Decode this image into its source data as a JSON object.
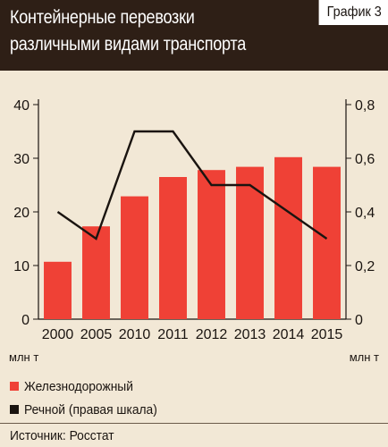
{
  "header": {
    "title": "Контейнерные перевозки\nразличными видами транспорта",
    "badge": "График 3"
  },
  "legend": {
    "items": [
      {
        "label": "Железнодорожный",
        "color": "#ef4136"
      },
      {
        "label": "Речной (правая шкала)",
        "color": "#1a1410"
      }
    ]
  },
  "source": "Источник: Росстат",
  "chart_data": {
    "type": "bar",
    "categories": [
      "2000",
      "2005",
      "2010",
      "2011",
      "2012",
      "2013",
      "2014",
      "2015"
    ],
    "series": [
      {
        "name": "Железнодорожный",
        "type": "bar",
        "axis": "left",
        "color": "#ef4136",
        "values": [
          10.7,
          17.3,
          22.9,
          26.5,
          27.8,
          28.4,
          30.2,
          28.4
        ]
      },
      {
        "name": "Речной (правая шкала)",
        "type": "line",
        "axis": "right",
        "color": "#1a1410",
        "values": [
          0.4,
          0.3,
          0.7,
          0.7,
          0.5,
          0.5,
          0.4,
          0.3
        ]
      }
    ],
    "y_left": {
      "min": 0,
      "max": 40,
      "ticks": [
        0,
        10,
        20,
        30,
        40
      ],
      "tick_labels": [
        "0",
        "10",
        "20",
        "30",
        "40"
      ],
      "unit": "млн т"
    },
    "y_right": {
      "min": 0,
      "max": 0.8,
      "ticks": [
        0,
        0.2,
        0.4,
        0.6,
        0.8
      ],
      "tick_labels": [
        "0",
        "0,2",
        "0,4",
        "0,6",
        "0,8"
      ],
      "unit": "млн т"
    },
    "grid": false,
    "legend_position": "bottom-left"
  }
}
